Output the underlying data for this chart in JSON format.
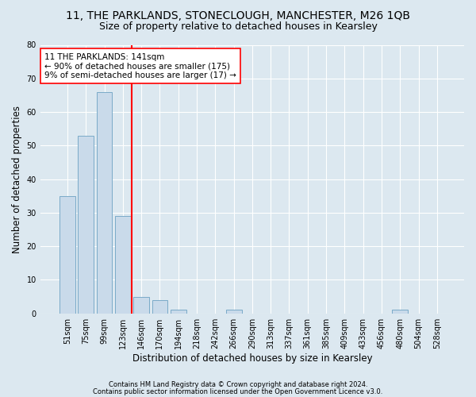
{
  "title": "11, THE PARKLANDS, STONECLOUGH, MANCHESTER, M26 1QB",
  "subtitle": "Size of property relative to detached houses in Kearsley",
  "xlabel": "Distribution of detached houses by size in Kearsley",
  "ylabel": "Number of detached properties",
  "footnote1": "Contains HM Land Registry data © Crown copyright and database right 2024.",
  "footnote2": "Contains public sector information licensed under the Open Government Licence v3.0.",
  "bin_labels": [
    "51sqm",
    "75sqm",
    "99sqm",
    "123sqm",
    "146sqm",
    "170sqm",
    "194sqm",
    "218sqm",
    "242sqm",
    "266sqm",
    "290sqm",
    "313sqm",
    "337sqm",
    "361sqm",
    "385sqm",
    "409sqm",
    "433sqm",
    "456sqm",
    "480sqm",
    "504sqm",
    "528sqm"
  ],
  "bar_values": [
    35,
    53,
    66,
    29,
    5,
    4,
    1,
    0,
    0,
    1,
    0,
    0,
    0,
    0,
    0,
    0,
    0,
    0,
    1,
    0,
    0
  ],
  "bar_color": "#c9daea",
  "bar_edge_color": "#7aaac8",
  "ylim": [
    0,
    80
  ],
  "yticks": [
    0,
    10,
    20,
    30,
    40,
    50,
    60,
    70,
    80
  ],
  "property_line_color": "red",
  "property_line_x": 3.5,
  "annotation_line1": "11 THE PARKLANDS: 141sqm",
  "annotation_line2": "← 90% of detached houses are smaller (175)",
  "annotation_line3": "9% of semi-detached houses are larger (17) →",
  "annotation_box_color": "white",
  "annotation_box_edge_color": "red",
  "background_color": "#dce8f0",
  "plot_background_color": "#dce8f0",
  "grid_color": "white",
  "title_fontsize": 10,
  "subtitle_fontsize": 9,
  "label_fontsize": 8.5,
  "tick_fontsize": 7,
  "annot_fontsize": 7.5,
  "footnote_fontsize": 6
}
